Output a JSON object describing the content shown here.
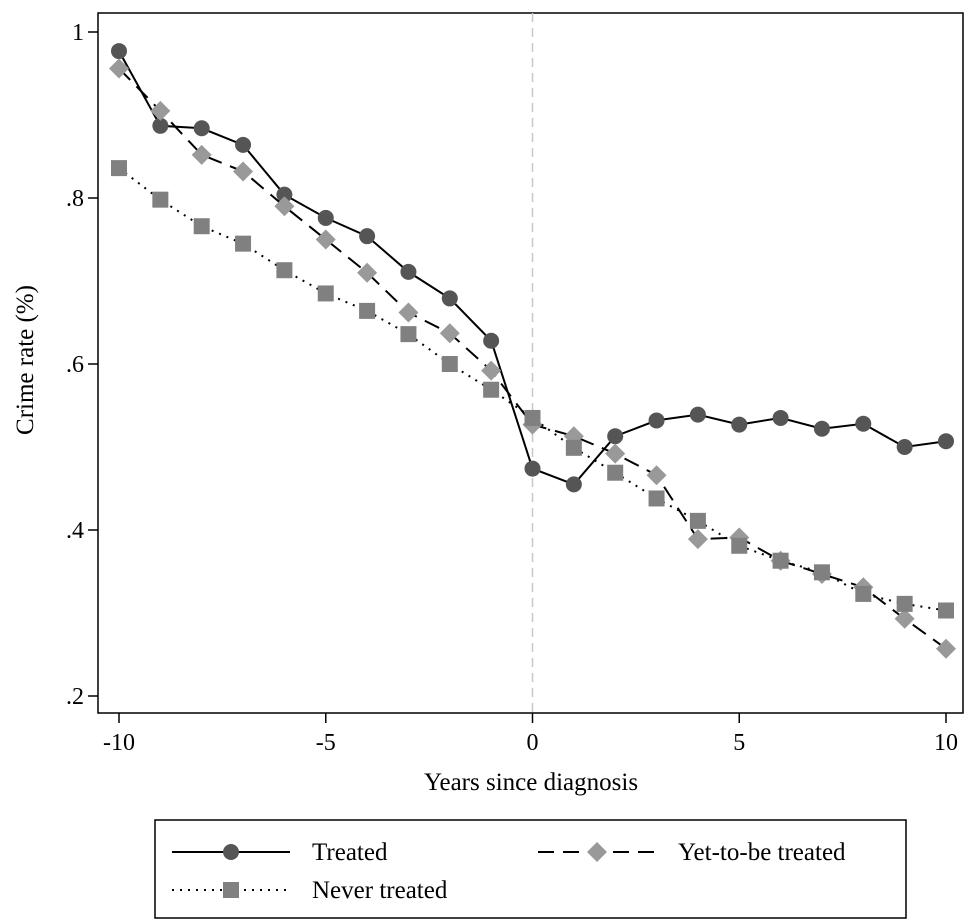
{
  "chart_data": {
    "type": "line",
    "title": "",
    "xlabel": "Years since diagnosis",
    "ylabel": "Crime rate (%)",
    "xlim": [
      -10,
      10
    ],
    "ylim": [
      0.2,
      1.0
    ],
    "x_ticks": [
      -10,
      -5,
      0,
      5,
      10
    ],
    "x_tick_labels": [
      "-10",
      "-5",
      "0",
      "5",
      "10"
    ],
    "y_ticks": [
      0.2,
      0.4,
      0.6,
      0.8,
      1.0
    ],
    "y_tick_labels": [
      ".2",
      ".4",
      ".6",
      ".8",
      "1"
    ],
    "grid": false,
    "reference_line": {
      "x": 0,
      "style": "dashed",
      "color": "#c8c8c8"
    },
    "legend_position": "bottom",
    "x": [
      -10,
      -9,
      -8,
      -7,
      -6,
      -5,
      -4,
      -3,
      -2,
      -1,
      0,
      1,
      2,
      3,
      4,
      5,
      6,
      7,
      8,
      9,
      10
    ],
    "series": [
      {
        "name": "Treated",
        "marker": "circle",
        "line_style": "solid",
        "color": "#555555",
        "line_color": "#000000",
        "values": [
          0.977,
          0.887,
          0.884,
          0.864,
          0.804,
          0.776,
          0.754,
          0.711,
          0.679,
          0.628,
          0.474,
          0.455,
          0.513,
          0.532,
          0.539,
          0.527,
          0.535,
          0.522,
          0.528,
          0.5,
          0.507
        ]
      },
      {
        "name": "Yet-to-be treated",
        "marker": "diamond",
        "line_style": "dashed",
        "color": "#999999",
        "line_color": "#000000",
        "values": [
          0.956,
          0.905,
          0.852,
          0.832,
          0.79,
          0.75,
          0.71,
          0.662,
          0.637,
          0.592,
          0.527,
          0.513,
          0.492,
          0.466,
          0.389,
          0.391,
          0.363,
          0.347,
          0.331,
          0.293,
          0.257
        ]
      },
      {
        "name": "Never treated",
        "marker": "square",
        "line_style": "dotted",
        "color": "#808080",
        "line_color": "#000000",
        "values": [
          0.836,
          0.798,
          0.766,
          0.745,
          0.713,
          0.685,
          0.664,
          0.636,
          0.6,
          0.569,
          0.535,
          0.499,
          0.469,
          0.438,
          0.411,
          0.381,
          0.363,
          0.349,
          0.323,
          0.311,
          0.303
        ]
      }
    ]
  }
}
